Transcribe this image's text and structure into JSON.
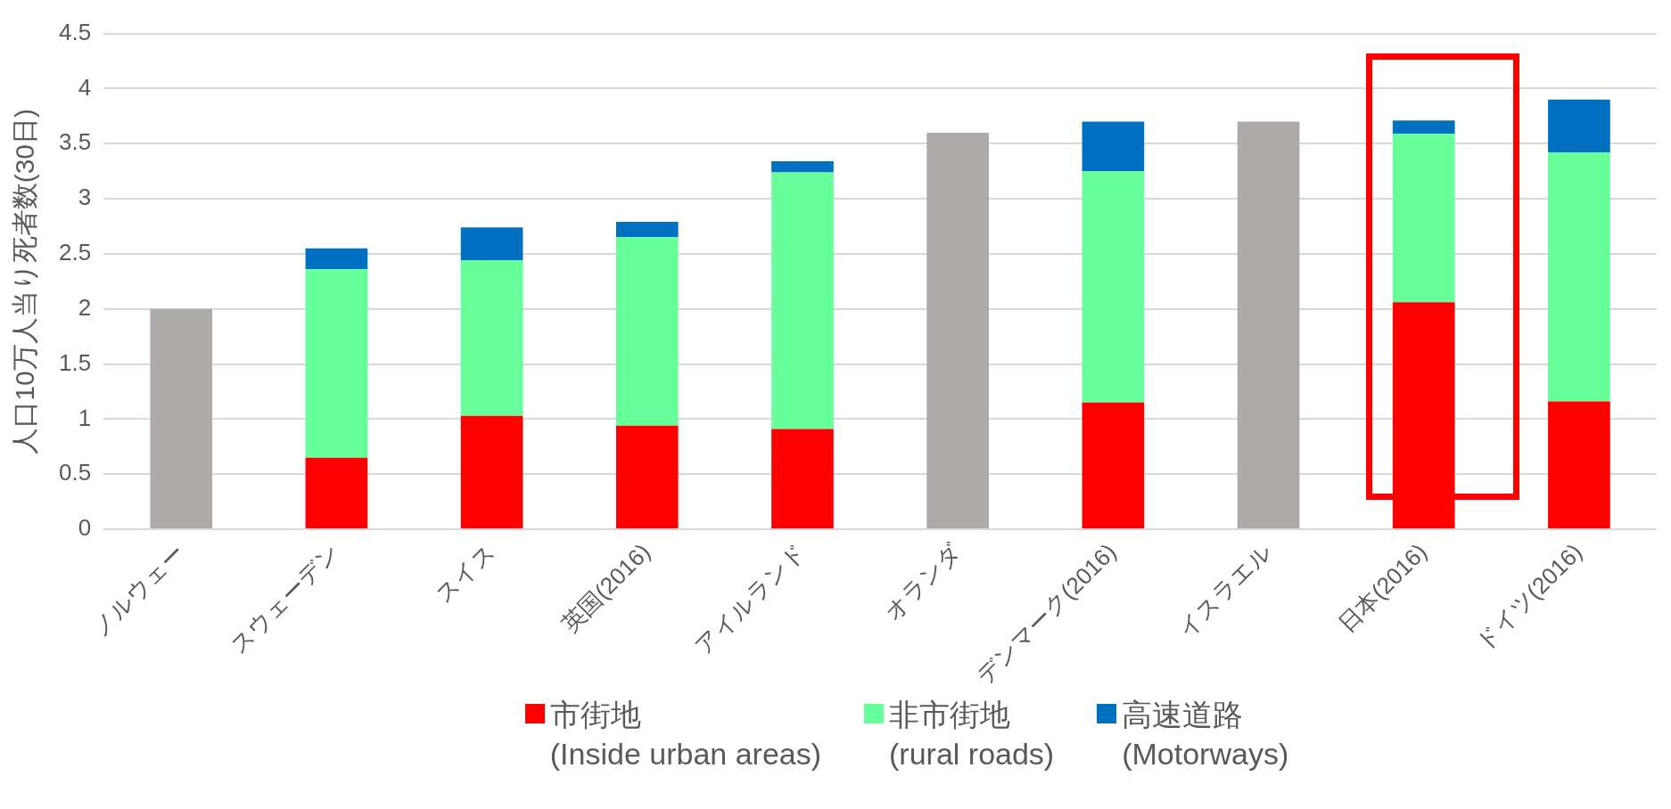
{
  "chart_data": {
    "type": "bar",
    "stacked": true,
    "ylabel": "人口10万人当り死者数(30日)",
    "categories": [
      "ノルウェー",
      "スウェーデン",
      "スイス",
      "英国(2016)",
      "アイルランド",
      "オランダ",
      "デンマーク(2016)",
      "イスラエル",
      "日本(2016)",
      "ドイツ(2016)"
    ],
    "series": [
      {
        "name": "市街地\n(Inside urban areas)",
        "color": "#ff0000",
        "values": [
          null,
          0.65,
          1.03,
          0.94,
          0.91,
          null,
          1.15,
          null,
          2.06,
          1.16
        ]
      },
      {
        "name": "非市街地\n(rural roads)",
        "color": "#66ff99",
        "values": [
          null,
          1.71,
          1.41,
          1.71,
          2.33,
          null,
          2.1,
          null,
          1.53,
          2.26
        ]
      },
      {
        "name": "高速道路\n(Motorways)",
        "color": "#0070c0",
        "values": [
          null,
          0.19,
          0.3,
          0.14,
          0.1,
          null,
          0.45,
          null,
          0.12,
          0.48
        ]
      },
      {
        "color": "#aeaaaa",
        "values": [
          2.0,
          null,
          null,
          null,
          null,
          3.6,
          null,
          3.7,
          null,
          null
        ]
      }
    ],
    "ylim": [
      0,
      4.5
    ],
    "yticks": [
      0,
      0.5,
      1,
      1.5,
      2,
      2.5,
      3,
      3.5,
      4,
      4.5
    ],
    "grid": "y",
    "legend": "bottom"
  }
}
